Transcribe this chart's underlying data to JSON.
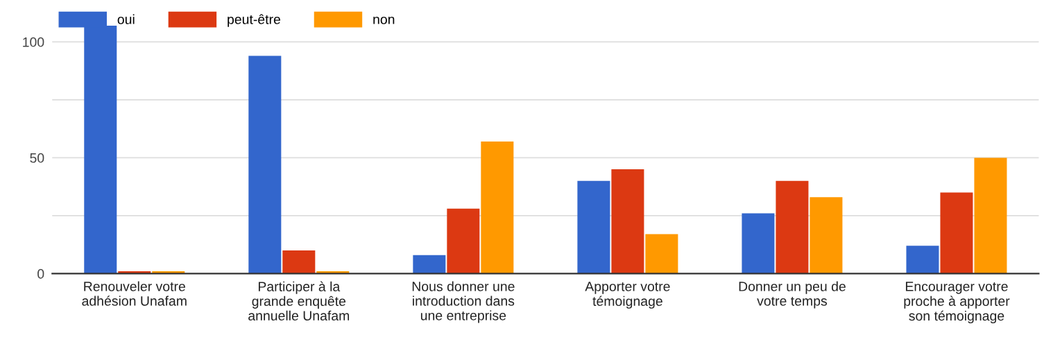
{
  "chart_data": {
    "type": "bar",
    "categories": [
      "Renouveler votre\nadhésion Unafam",
      "Participer à la\ngrande enquête\nannuelle Unafam",
      "Nous donner une\nintroduction dans\nune entreprise",
      "Apporter votre\ntémoignage",
      "Donner un peu de\nvotre temps",
      "Encourager votre\nproche à apporter\nson témoignage"
    ],
    "series": [
      {
        "name": "oui",
        "color": "#3366cc",
        "values": [
          107,
          94,
          8,
          40,
          26,
          12
        ]
      },
      {
        "name": "peut-être",
        "color": "#dc3912",
        "values": [
          1,
          10,
          28,
          45,
          40,
          35
        ]
      },
      {
        "name": "non",
        "color": "#ff9900",
        "values": [
          1,
          1,
          57,
          17,
          33,
          50
        ]
      }
    ],
    "ylim": [
      0,
      107
    ],
    "yticks": [
      0,
      {
        "value": 25,
        "label": null
      },
      50,
      {
        "value": 75,
        "label": null
      },
      100
    ],
    "grid": "y",
    "legend": "top left"
  }
}
